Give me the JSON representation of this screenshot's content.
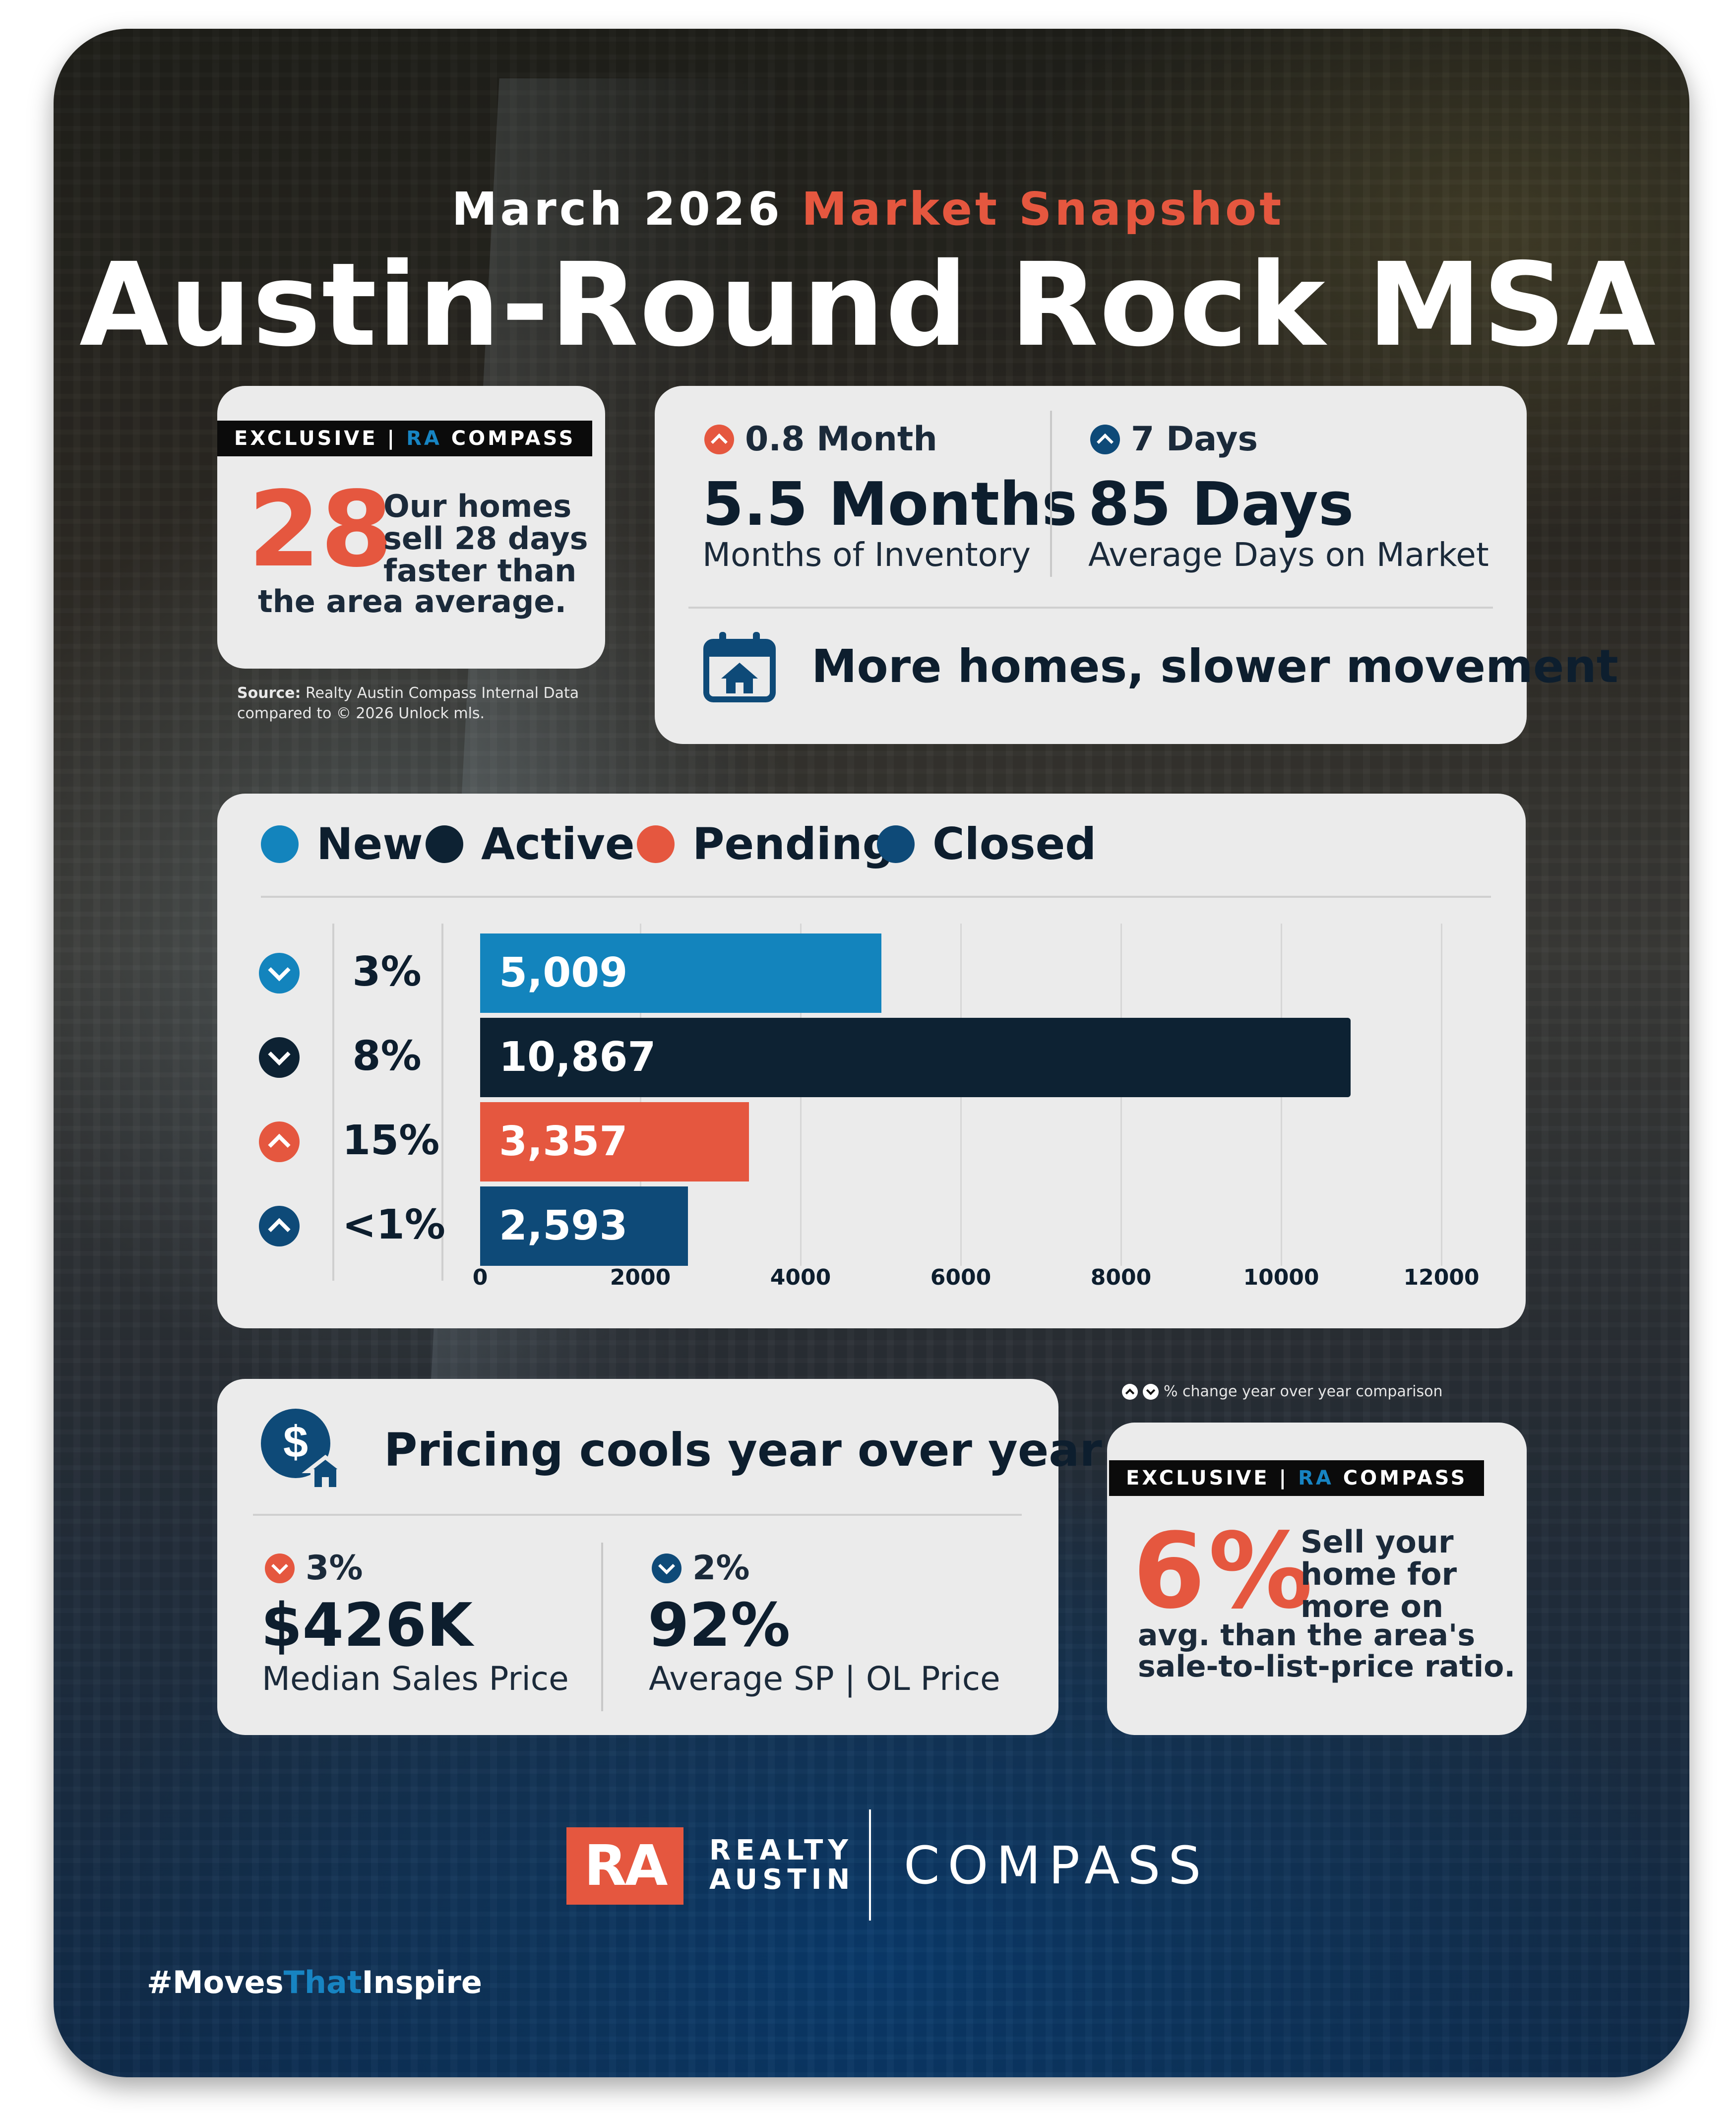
{
  "header": {
    "subtitle_prefix": "March 2026",
    "subtitle_accent": "Market Snapshot",
    "title": "Austin-Round Rock MSA"
  },
  "exclusive_top": {
    "tag_prefix": "EXCLUSIVE |",
    "tag_ra": "RA",
    "tag_brand": "COMPASS",
    "number": "28",
    "text_line1": "Our homes",
    "text_line2": "sell 28 days",
    "text_line3": "faster than",
    "text_line4": "the area average.",
    "source_bold": "Source:",
    "source_line1": " Realty Austin Compass Internal Data",
    "source_line2": "compared to © 2026 Unlock mls."
  },
  "inventory_card": {
    "months": {
      "change": "0.8 Month",
      "direction": "up",
      "value": "5.5 Months",
      "label": "Months of Inventory"
    },
    "days": {
      "change": "7 Days",
      "direction": "up",
      "value": "85 Days",
      "label": "Average Days on Market"
    },
    "headline": "More homes, slower movement",
    "icon": "calendar-house-icon"
  },
  "chart_data": {
    "type": "bar",
    "orientation": "horizontal",
    "categories": [
      "New",
      "Active",
      "Pending",
      "Closed"
    ],
    "values": [
      5009,
      10867,
      3357,
      2593
    ],
    "value_labels": [
      "5,009",
      "10,867",
      "3,357",
      "2,593"
    ],
    "yoy_change": [
      "3%",
      "8%",
      "15%",
      "<1%"
    ],
    "yoy_direction": [
      "down",
      "down",
      "up",
      "up"
    ],
    "xlim": [
      0,
      12000
    ],
    "xticks": [
      0,
      2000,
      4000,
      6000,
      8000,
      10000,
      12000
    ],
    "colors": [
      "#1384bd",
      "#0d2233",
      "#e5573f",
      "#0e4a78"
    ],
    "grid": true,
    "legend": "top"
  },
  "chart_note": "% change year over year comparison",
  "pricing_card": {
    "headline": "Pricing cools year over year",
    "icon": "dollar-house-icon",
    "median": {
      "change": "3%",
      "direction": "down",
      "value": "$426K",
      "label": "Median Sales Price"
    },
    "ratio": {
      "change": "2%",
      "direction": "down",
      "value": "92%",
      "label": "Average SP | OL Price"
    }
  },
  "exclusive_bottom": {
    "tag_prefix": "EXCLUSIVE |",
    "tag_ra": "RA",
    "tag_brand": "COMPASS",
    "number": "6%",
    "text_line1": "Sell your",
    "text_line2": "home for",
    "text_line3": "more on",
    "text_line4": "avg. than the area's",
    "text_line5": "sale-to-list-price ratio."
  },
  "footer": {
    "ra_logo": "RA",
    "realty": "REALTY",
    "austin": "AUSTIN",
    "compass": "COMPASS",
    "hashtag_pre": "#Moves",
    "hashtag_mid": "That",
    "hashtag_post": "Inspire"
  },
  "colors": {
    "accent_red": "#e5573f",
    "brand_blue": "#1784c2",
    "navy": "#0d2233",
    "card_bg": "#ebebeb"
  }
}
